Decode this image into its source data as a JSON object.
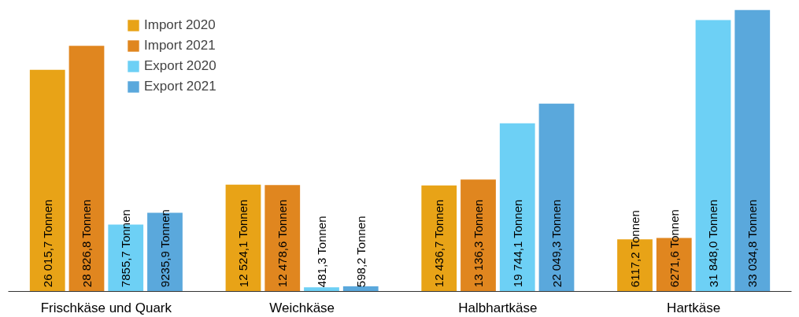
{
  "chart_data": {
    "type": "bar",
    "categories": [
      "Frischkäse und Quark",
      "Weichkäse",
      "Halbhartkäse",
      "Hartkäse"
    ],
    "series": [
      {
        "name": "Import 2020",
        "color": "#e8a317",
        "values": [
          26015.7,
          12524.1,
          12436.7,
          6117.2
        ],
        "value_labels": [
          "26 015,7 Tonnen",
          "12 524,1 Tonnen",
          "12 436,7 Tonnen",
          "6117,2 Tonnen"
        ]
      },
      {
        "name": "Import 2021",
        "color": "#e0861f",
        "values": [
          28826.8,
          12478.6,
          13136.3,
          6271.6
        ],
        "value_labels": [
          "28 826,8 Tonnen",
          "12 478,6 Tonnen",
          "13 136,3 Tonnen",
          "6271,6 Tonnen"
        ]
      },
      {
        "name": "Export 2020",
        "color": "#6dd0f5",
        "values": [
          7855.7,
          481.3,
          19744.1,
          31848.0
        ],
        "value_labels": [
          "7855,7 Tonnen",
          "481,3 Tonnen",
          "19 744,1 Tonnen",
          "31 848,0 Tonnen"
        ]
      },
      {
        "name": "Export 2021",
        "color": "#5aa8dc",
        "values": [
          9235.9,
          598.2,
          22049.3,
          33034.8
        ],
        "value_labels": [
          "9235,9 Tonnen",
          "598,2 Tonnen",
          "22 049,3 Tonnen",
          "33 034,8 Tonnen"
        ]
      }
    ],
    "legend": "top left",
    "grid": false
  }
}
